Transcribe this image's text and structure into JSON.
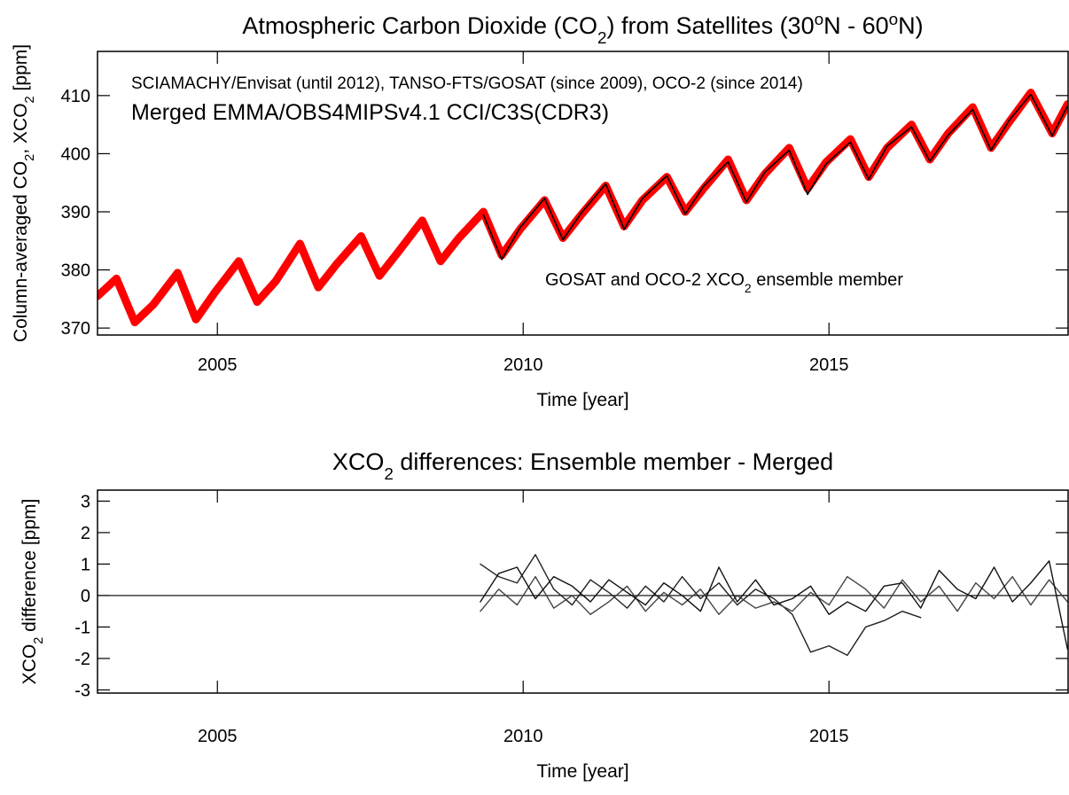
{
  "chart_data": [
    {
      "type": "line",
      "title": [
        "Atmospheric Carbon Dioxide (CO",
        {
          "text": "2",
          "style": "sub"
        },
        ") from Satellites (30",
        {
          "text": "o",
          "style": "sup"
        },
        "N - 60",
        {
          "text": "o",
          "style": "sup"
        },
        "N)"
      ],
      "ylabel": [
        "Column-averaged CO",
        {
          "text": "2",
          "style": "sub"
        },
        ", XCO",
        {
          "text": "2",
          "style": "sub"
        },
        " [ppm]"
      ],
      "xlabel": "Time [year]",
      "annotations": [
        {
          "text": "SCIAMACHY/Envisat (until 2012), TANSO-FTS/GOSAT (since 2009), OCO-2 (since 2014)",
          "color": "#1a1ae6"
        }
      ],
      "xlim": [
        2003.04,
        2018.91
      ],
      "xticks": [
        2005,
        2010,
        2015
      ],
      "ylim": [
        368.8,
        417.6
      ],
      "yticks": [
        370,
        380,
        390,
        400,
        410
      ],
      "series": [
        {
          "name": "Merged EMMA/OBS4MIPSv4.1 CCI/C3S(CDR3)",
          "color": "#ff0000",
          "width": 9,
          "x": [
            2003.04,
            2003.35,
            2003.65,
            2003.95,
            2004.35,
            2004.65,
            2004.95,
            2005.35,
            2005.65,
            2005.95,
            2006.35,
            2006.65,
            2006.95,
            2007.35,
            2007.65,
            2007.95,
            2008.35,
            2008.65,
            2008.95,
            2009.35,
            2009.65,
            2009.95,
            2010.35,
            2010.65,
            2010.95,
            2011.35,
            2011.65,
            2011.95,
            2012.35,
            2012.65,
            2012.95,
            2013.35,
            2013.65,
            2013.95,
            2014.35,
            2014.65,
            2014.95,
            2015.35,
            2015.65,
            2015.95,
            2016.35,
            2016.65,
            2016.95,
            2017.35,
            2017.65,
            2017.95,
            2018.3,
            2018.65,
            2018.9
          ],
          "values": [
            375.5,
            378.5,
            371.0,
            374.0,
            379.5,
            371.5,
            376.0,
            381.5,
            374.5,
            378.0,
            384.5,
            377.0,
            381.0,
            385.8,
            379.0,
            383.0,
            388.5,
            381.5,
            385.5,
            390.0,
            382.5,
            387.0,
            392.0,
            385.5,
            389.5,
            394.5,
            387.5,
            392.0,
            396.0,
            390.0,
            394.0,
            399.0,
            392.0,
            396.5,
            401.0,
            394.0,
            398.5,
            402.5,
            396.0,
            401.0,
            405.0,
            399.0,
            403.5,
            408.0,
            401.0,
            405.5,
            410.5,
            403.5,
            408.5
          ]
        },
        {
          "name": [
            "GOSAT and OCO-2 XCO",
            {
              "text": "2",
              "style": "sub"
            },
            " ensemble member"
          ],
          "color": "#000000",
          "width": 1.6,
          "x": [
            2009.35,
            2009.65,
            2009.95,
            2010.35,
            2010.65,
            2010.95,
            2011.35,
            2011.65,
            2011.95,
            2012.35,
            2012.65,
            2012.95,
            2013.35,
            2013.65,
            2013.95,
            2014.35,
            2014.65,
            2014.95,
            2015.35,
            2015.65,
            2015.95,
            2016.35,
            2016.65,
            2016.95,
            2017.35,
            2017.65,
            2017.95,
            2018.3,
            2018.65,
            2018.9
          ],
          "values": [
            389.5,
            381.8,
            387.3,
            392.3,
            385.2,
            389.8,
            394.8,
            387.0,
            392.3,
            396.2,
            389.6,
            394.4,
            398.6,
            391.7,
            396.8,
            400.6,
            393.0,
            398.2,
            402.0,
            395.6,
            401.3,
            404.6,
            398.7,
            403.2,
            407.6,
            400.6,
            405.8,
            410.2,
            403.1,
            408.2
          ]
        }
      ]
    },
    {
      "type": "line",
      "title": [
        "XCO",
        {
          "text": "2",
          "style": "sub"
        },
        " differences: Ensemble member - Merged"
      ],
      "ylabel": [
        "XCO",
        {
          "text": "2",
          "style": "sub"
        },
        " difference [ppm]"
      ],
      "xlabel": "Time [year]",
      "xlim": [
        2003.04,
        2018.91
      ],
      "xticks": [
        2005,
        2010,
        2015
      ],
      "ylim": [
        -3.1,
        3.35
      ],
      "yticks": [
        -3,
        -2,
        -1,
        0,
        1,
        2,
        3
      ],
      "hline": 0,
      "x": [
        2009.3,
        2009.6,
        2009.9,
        2010.2,
        2010.5,
        2010.8,
        2011.1,
        2011.4,
        2011.7,
        2012.0,
        2012.3,
        2012.6,
        2012.9,
        2013.2,
        2013.5,
        2013.8,
        2014.1,
        2014.4,
        2014.7,
        2015.0,
        2015.3,
        2015.6,
        2015.9,
        2016.2,
        2016.5,
        2016.8,
        2017.1,
        2017.4,
        2017.7,
        2018.0,
        2018.3,
        2018.6,
        2018.9
      ],
      "series": [
        {
          "color": "#222222",
          "width": 1.4,
          "values": [
            1.0,
            0.6,
            0.4,
            1.3,
            0.2,
            -0.3,
            0.5,
            0.1,
            -0.4,
            0.3,
            -0.2,
            0.6,
            -0.1,
            0.4,
            -0.3,
            0.2,
            -0.1,
            -0.6,
            -1.8,
            -1.6,
            -1.9,
            -1.0,
            -0.8,
            -0.5,
            -0.7,
            null,
            null,
            null,
            null,
            null,
            null,
            null,
            null
          ]
        },
        {
          "color": "#444444",
          "width": 1.4,
          "values": [
            -0.5,
            0.2,
            -0.3,
            0.6,
            -0.4,
            0.0,
            -0.6,
            -0.2,
            0.3,
            -0.5,
            0.1,
            -0.3,
            0.2,
            -0.6,
            0.0,
            -0.4,
            -0.2,
            -0.5,
            0.1,
            -0.3,
            0.6,
            0.2,
            -0.4,
            0.5,
            -0.2,
            0.3,
            -0.5,
            0.4,
            -0.1,
            0.6,
            -0.3,
            0.5,
            -0.2
          ]
        },
        {
          "color": "#111111",
          "width": 1.4,
          "values": [
            -0.2,
            0.7,
            0.9,
            -0.1,
            0.6,
            0.3,
            -0.2,
            0.5,
            0.1,
            -0.3,
            0.4,
            0.0,
            -0.5,
            0.9,
            -0.2,
            0.5,
            -0.3,
            -0.1,
            0.3,
            -0.6,
            -0.2,
            -0.5,
            0.3,
            0.4,
            -0.4,
            0.8,
            0.2,
            -0.1,
            0.9,
            -0.2,
            0.4,
            1.1,
            -1.7
          ]
        }
      ]
    }
  ]
}
